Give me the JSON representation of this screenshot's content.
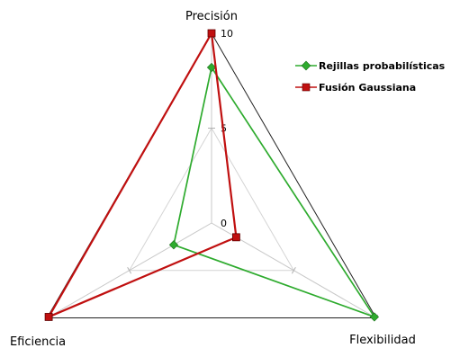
{
  "chart_data": {
    "type": "radar",
    "axes": [
      "Precisión",
      "Flexibilidad",
      "Eficiencia"
    ],
    "range": [
      0,
      10
    ],
    "tick_labels": [
      "0",
      "5",
      "10"
    ],
    "series": [
      {
        "name": "Rejillas probabilísticas",
        "color": "#2eab2e",
        "marker": "diamond",
        "values": [
          8.2,
          9.9,
          2.3
        ]
      },
      {
        "name": "Fusión Gaussiana",
        "color": "#c01010",
        "marker": "square",
        "values": [
          10,
          1.5,
          9.9
        ]
      }
    ],
    "legend_position": "top-right",
    "grid": true
  }
}
